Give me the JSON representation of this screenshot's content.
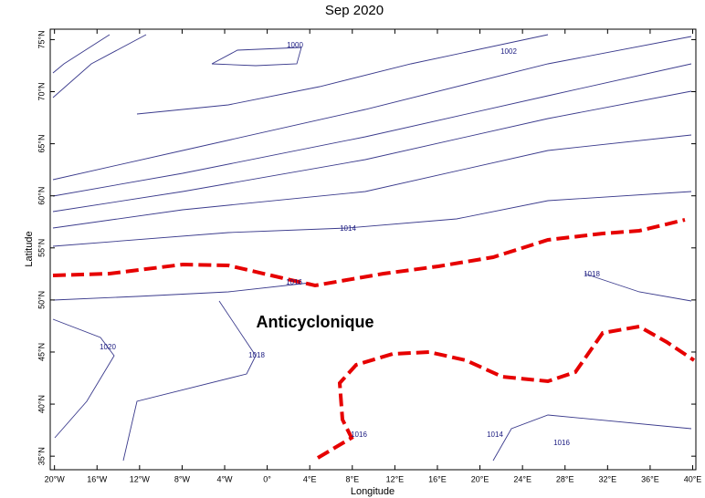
{
  "map": {
    "title": "Sep 2020",
    "annotation": "Anticyclonique",
    "xaxis": {
      "label": "Longitude",
      "lim": [
        -20.4,
        40.3
      ],
      "ticks": [
        {
          "value": -20,
          "label": "20°W"
        },
        {
          "value": -16,
          "label": "16°W"
        },
        {
          "value": -12,
          "label": "12°W"
        },
        {
          "value": -8,
          "label": "8°W"
        },
        {
          "value": -4,
          "label": "4°W"
        },
        {
          "value": 0,
          "label": "0°"
        },
        {
          "value": 4,
          "label": "4°E"
        },
        {
          "value": 8,
          "label": "8°E"
        },
        {
          "value": 12,
          "label": "12°E"
        },
        {
          "value": 16,
          "label": "16°E"
        },
        {
          "value": 20,
          "label": "20°E"
        },
        {
          "value": 24,
          "label": "24°E"
        },
        {
          "value": 28,
          "label": "28°E"
        },
        {
          "value": 32,
          "label": "32°E"
        },
        {
          "value": 36,
          "label": "36°E"
        },
        {
          "value": 40,
          "label": "40°E"
        }
      ]
    },
    "yaxis": {
      "label": "Latitude",
      "lim": [
        33.7,
        76
      ],
      "ticks": [
        {
          "value": 35,
          "label": "35°N"
        },
        {
          "value": 40,
          "label": "40°N"
        },
        {
          "value": 45,
          "label": "45°N"
        },
        {
          "value": 50,
          "label": "50°N"
        },
        {
          "value": 55,
          "label": "55°N"
        },
        {
          "value": 60,
          "label": "60°N"
        },
        {
          "value": 65,
          "label": "65°N"
        },
        {
          "value": 70,
          "label": "70°N"
        },
        {
          "value": 75,
          "label": "75°N"
        }
      ]
    },
    "contour_labels": [
      "1000",
      "1002",
      "1014",
      "1016",
      "1018",
      "1020",
      "1018",
      "1016",
      "1014",
      "1016"
    ]
  }
}
